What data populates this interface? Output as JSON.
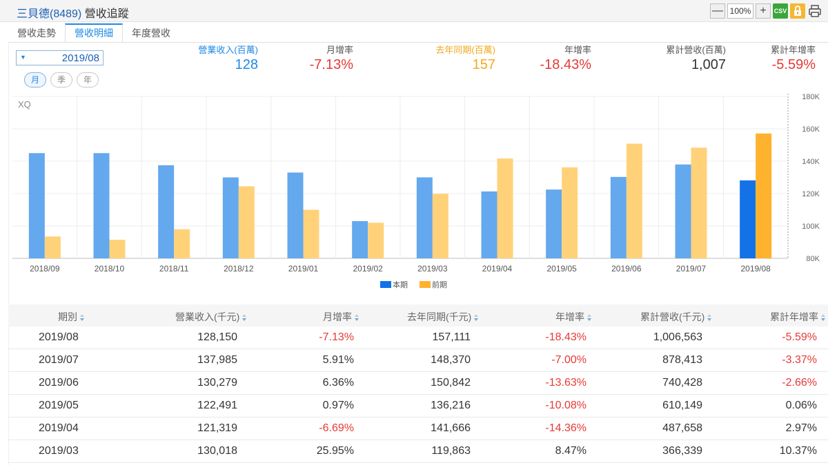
{
  "app": {
    "title": "三貝德(8489)",
    "suffix": " 營收追蹤"
  },
  "toolbar": {
    "zoom": "100%",
    "csv": "CSV",
    "minus": "—",
    "plus": "+"
  },
  "tabs": [
    "營收走勢",
    "營收明細",
    "年度營收"
  ],
  "period": {
    "selected": "2019/08"
  },
  "granularity": [
    "月",
    "季",
    "年"
  ],
  "stats": [
    {
      "label": "營業收入(百萬)",
      "value": "128",
      "label_color": "#1e88e5",
      "value_color": "#1e88e5"
    },
    {
      "label": "月增率",
      "value": "-7.13%",
      "label_color": "#555555",
      "value_color": "#e53935"
    },
    {
      "label": "去年同期(百萬)",
      "value": "157",
      "label_color": "#f2a81d",
      "value_color": "#f2a81d"
    },
    {
      "label": "年增率",
      "value": "-18.43%",
      "label_color": "#555555",
      "value_color": "#e53935"
    },
    {
      "label": "累計營收(百萬)",
      "value": "1,007",
      "label_color": "#555555",
      "value_color": "#333333"
    },
    {
      "label": "累計年增率",
      "value": "-5.59%",
      "label_color": "#555555",
      "value_color": "#e53935"
    }
  ],
  "chart_data": {
    "type": "bar",
    "watermark": "XQ",
    "categories": [
      "2018/09",
      "2018/10",
      "2018/11",
      "2018/12",
      "2019/01",
      "2019/02",
      "2019/03",
      "2019/04",
      "2019/05",
      "2019/06",
      "2019/07",
      "2019/08"
    ],
    "series": [
      {
        "name": "本期",
        "color": "#64a8ee",
        "highlight_color": "#1373e6",
        "values": [
          145,
          145,
          137.5,
          130,
          133,
          103,
          130.018,
          121.319,
          122.491,
          130.279,
          137.985,
          128.15
        ]
      },
      {
        "name": "前期",
        "color": "#ffd27a",
        "highlight_color": "#ffb22e",
        "values": [
          93.5,
          91.5,
          98,
          124.5,
          110,
          102,
          119.863,
          141.666,
          136.216,
          150.842,
          148.37,
          157.111
        ]
      }
    ],
    "y_ticks": [
      "80K",
      "100K",
      "120K",
      "140K",
      "160K",
      "180K"
    ],
    "ylim": [
      80,
      180
    ],
    "unit": "K",
    "highlight_index": 11,
    "legend_position": "bottom"
  },
  "table": {
    "columns": [
      "期別",
      "營業收入(千元)",
      "月增率",
      "去年同期(千元)",
      "年增率",
      "累計營收(千元)",
      "累計年增率"
    ],
    "rows": [
      [
        "2019/08",
        "128,150",
        "-7.13%",
        "157,111",
        "-18.43%",
        "1,006,563",
        "-5.59%"
      ],
      [
        "2019/07",
        "137,985",
        "5.91%",
        "148,370",
        "-7.00%",
        "878,413",
        "-3.37%"
      ],
      [
        "2019/06",
        "130,279",
        "6.36%",
        "150,842",
        "-13.63%",
        "740,428",
        "-2.66%"
      ],
      [
        "2019/05",
        "122,491",
        "0.97%",
        "136,216",
        "-10.08%",
        "610,149",
        "0.06%"
      ],
      [
        "2019/04",
        "121,319",
        "-6.69%",
        "141,666",
        "-14.36%",
        "487,658",
        "2.97%"
      ],
      [
        "2019/03",
        "130,018",
        "25.95%",
        "119,863",
        "8.47%",
        "366,339",
        "10.37%"
      ]
    ]
  }
}
